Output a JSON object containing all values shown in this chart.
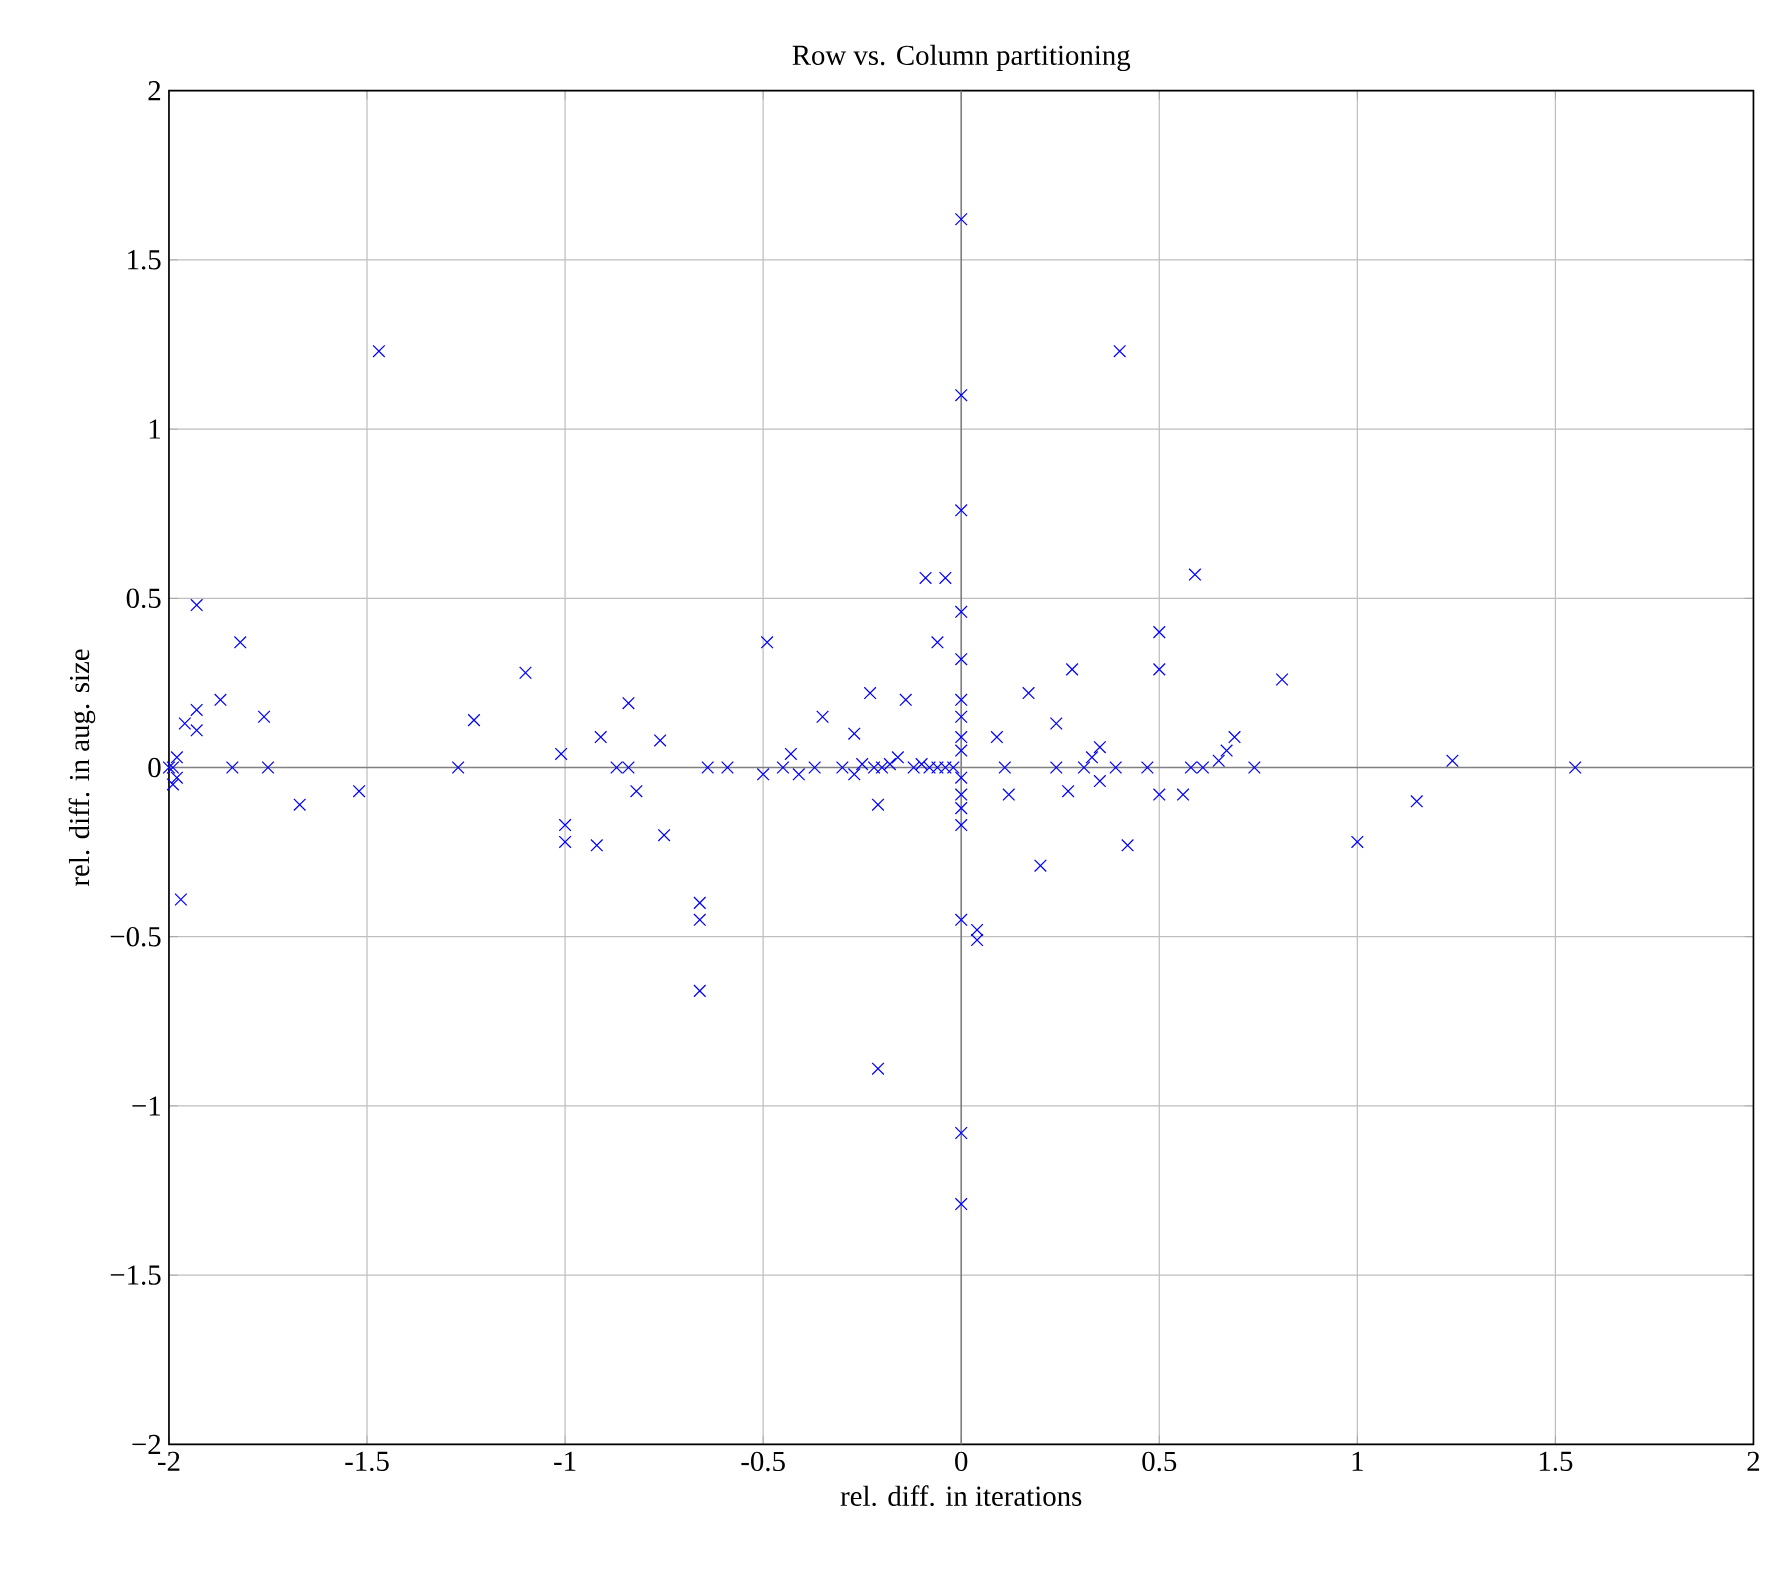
{
  "chart_data": {
    "type": "scatter",
    "title": "Row vs. Column partitioning",
    "xlabel": "rel. diff. in iterations",
    "ylabel": "rel. diff. in aug. size",
    "xlim": [
      -2,
      2
    ],
    "ylim": [
      -2,
      2
    ],
    "xticks": [
      -2,
      -1.5,
      -1,
      -0.5,
      0,
      0.5,
      1,
      1.5,
      2
    ],
    "yticks": [
      {
        "value": -2,
        "label": "−2"
      },
      {
        "value": -1.5,
        "label": "−1.5"
      },
      {
        "value": -1,
        "label": "−1"
      },
      {
        "value": -0.5,
        "label": "−0.5"
      },
      0,
      0.5,
      1,
      1.5,
      2
    ],
    "grid": true,
    "marker": "cross",
    "series": [
      {
        "color": "#0000ff",
        "x": [
          -2,
          -1.99,
          -1.98,
          -1.99,
          -1.98,
          -1.97,
          -1.93,
          -1.96,
          -1.93,
          -1.93,
          -1.87,
          -1.82,
          -1.84,
          -1.76,
          -1.75,
          -1.67,
          -1.52,
          -1.47,
          -1.27,
          -1.23,
          -1.1,
          -1.01,
          -1.0,
          -1.0,
          -0.91,
          -0.92,
          -0.87,
          -0.84,
          -0.84,
          -0.82,
          -0.76,
          -0.75,
          -0.66,
          -0.66,
          -0.66,
          -0.64,
          -0.59,
          -0.49,
          -0.5,
          -0.45,
          -0.43,
          -0.41,
          -0.35,
          -0.37,
          -0.3,
          -0.27,
          -0.27,
          -0.25,
          -0.22,
          -0.23,
          -0.2,
          -0.21,
          -0.21,
          -0.18,
          -0.16,
          -0.14,
          -0.12,
          -0.1,
          -0.09,
          -0.04,
          -0.06,
          -0.08,
          -0.06,
          -0.04,
          -0.02,
          0,
          0,
          0,
          0,
          0,
          0,
          0,
          0,
          0,
          0,
          0,
          0,
          0,
          0,
          0,
          0,
          0.04,
          0.04,
          0.09,
          0.11,
          0.12,
          0.17,
          0.2,
          0.24,
          0.24,
          0.27,
          0.28,
          0.31,
          0.33,
          0.35,
          0.35,
          0.39,
          0.4,
          0.42,
          0.47,
          0.5,
          0.5,
          0.5,
          0.56,
          0.58,
          0.59,
          0.61,
          0.65,
          0.67,
          0.69,
          0.74,
          0.81,
          1.0,
          1.15,
          1.24,
          1.55
        ],
        "values": [
          0,
          -0.05,
          0.03,
          0.0,
          -0.03,
          -0.39,
          0.48,
          0.13,
          0.17,
          0.11,
          0.2,
          0.37,
          0,
          0.15,
          0,
          -0.11,
          -0.07,
          1.23,
          0,
          0.14,
          0.28,
          0.04,
          -0.17,
          -0.22,
          0.09,
          -0.23,
          0,
          0.19,
          0,
          -0.07,
          0.08,
          -0.2,
          -0.4,
          -0.45,
          -0.66,
          0,
          0,
          0.37,
          -0.02,
          0,
          0.04,
          -0.02,
          0.15,
          0,
          0,
          0.1,
          -0.02,
          0.01,
          0,
          0.22,
          0,
          -0.11,
          -0.89,
          0.01,
          0.03,
          0.2,
          0,
          0.01,
          0.56,
          0.56,
          0.37,
          0,
          0,
          0,
          0,
          1.62,
          1.1,
          0.76,
          0.46,
          0.32,
          0.2,
          0.15,
          0.09,
          0.05,
          -0.03,
          -0.08,
          -0.12,
          -0.17,
          -0.45,
          -1.08,
          -1.29,
          -0.48,
          -0.51,
          0.09,
          0,
          -0.08,
          0.22,
          -0.29,
          0.13,
          0,
          -0.07,
          0.29,
          0,
          0.03,
          0.06,
          -0.04,
          0,
          1.23,
          -0.23,
          0,
          0.4,
          0.29,
          -0.08,
          -0.08,
          0,
          0.57,
          0,
          0.02,
          0.05,
          0.09,
          0,
          0.26,
          -0.22,
          -0.1,
          0.02,
          0
        ]
      }
    ]
  }
}
